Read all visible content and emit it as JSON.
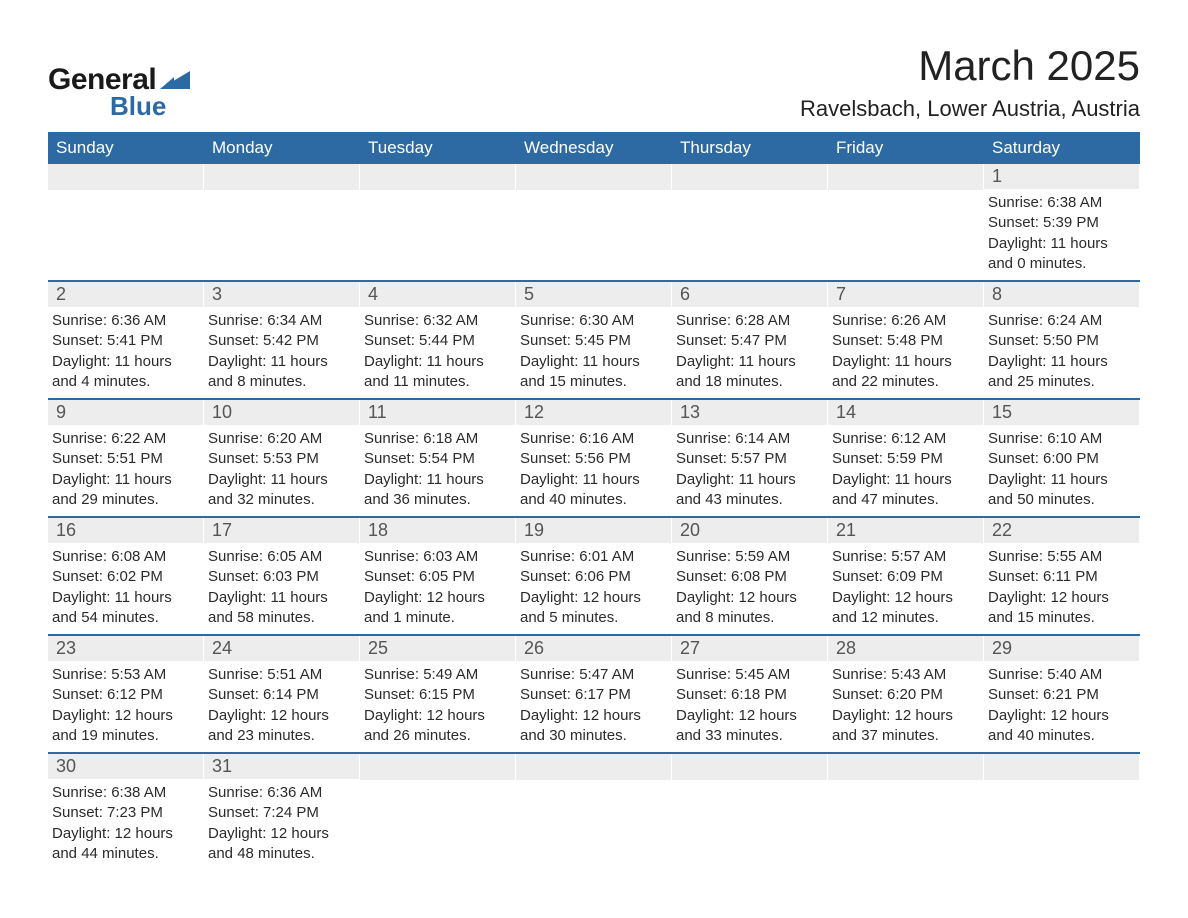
{
  "brand": {
    "part1": "General",
    "part2": "Blue",
    "mark_color": "#2d6aa3"
  },
  "title": "March 2025",
  "location": "Ravelsbach, Lower Austria, Austria",
  "colors": {
    "header_bg": "#2d6aa3",
    "header_text": "#ffffff",
    "daynum_bg": "#ededed",
    "text": "#333333",
    "row_border": "#2d6aa3"
  },
  "day_headers": [
    "Sunday",
    "Monday",
    "Tuesday",
    "Wednesday",
    "Thursday",
    "Friday",
    "Saturday"
  ],
  "weeks": [
    [
      null,
      null,
      null,
      null,
      null,
      null,
      {
        "n": "1",
        "sr": "6:38 AM",
        "ss": "5:39 PM",
        "dl": "11 hours and 0 minutes."
      }
    ],
    [
      {
        "n": "2",
        "sr": "6:36 AM",
        "ss": "5:41 PM",
        "dl": "11 hours and 4 minutes."
      },
      {
        "n": "3",
        "sr": "6:34 AM",
        "ss": "5:42 PM",
        "dl": "11 hours and 8 minutes."
      },
      {
        "n": "4",
        "sr": "6:32 AM",
        "ss": "5:44 PM",
        "dl": "11 hours and 11 minutes."
      },
      {
        "n": "5",
        "sr": "6:30 AM",
        "ss": "5:45 PM",
        "dl": "11 hours and 15 minutes."
      },
      {
        "n": "6",
        "sr": "6:28 AM",
        "ss": "5:47 PM",
        "dl": "11 hours and 18 minutes."
      },
      {
        "n": "7",
        "sr": "6:26 AM",
        "ss": "5:48 PM",
        "dl": "11 hours and 22 minutes."
      },
      {
        "n": "8",
        "sr": "6:24 AM",
        "ss": "5:50 PM",
        "dl": "11 hours and 25 minutes."
      }
    ],
    [
      {
        "n": "9",
        "sr": "6:22 AM",
        "ss": "5:51 PM",
        "dl": "11 hours and 29 minutes."
      },
      {
        "n": "10",
        "sr": "6:20 AM",
        "ss": "5:53 PM",
        "dl": "11 hours and 32 minutes."
      },
      {
        "n": "11",
        "sr": "6:18 AM",
        "ss": "5:54 PM",
        "dl": "11 hours and 36 minutes."
      },
      {
        "n": "12",
        "sr": "6:16 AM",
        "ss": "5:56 PM",
        "dl": "11 hours and 40 minutes."
      },
      {
        "n": "13",
        "sr": "6:14 AM",
        "ss": "5:57 PM",
        "dl": "11 hours and 43 minutes."
      },
      {
        "n": "14",
        "sr": "6:12 AM",
        "ss": "5:59 PM",
        "dl": "11 hours and 47 minutes."
      },
      {
        "n": "15",
        "sr": "6:10 AM",
        "ss": "6:00 PM",
        "dl": "11 hours and 50 minutes."
      }
    ],
    [
      {
        "n": "16",
        "sr": "6:08 AM",
        "ss": "6:02 PM",
        "dl": "11 hours and 54 minutes."
      },
      {
        "n": "17",
        "sr": "6:05 AM",
        "ss": "6:03 PM",
        "dl": "11 hours and 58 minutes."
      },
      {
        "n": "18",
        "sr": "6:03 AM",
        "ss": "6:05 PM",
        "dl": "12 hours and 1 minute."
      },
      {
        "n": "19",
        "sr": "6:01 AM",
        "ss": "6:06 PM",
        "dl": "12 hours and 5 minutes."
      },
      {
        "n": "20",
        "sr": "5:59 AM",
        "ss": "6:08 PM",
        "dl": "12 hours and 8 minutes."
      },
      {
        "n": "21",
        "sr": "5:57 AM",
        "ss": "6:09 PM",
        "dl": "12 hours and 12 minutes."
      },
      {
        "n": "22",
        "sr": "5:55 AM",
        "ss": "6:11 PM",
        "dl": "12 hours and 15 minutes."
      }
    ],
    [
      {
        "n": "23",
        "sr": "5:53 AM",
        "ss": "6:12 PM",
        "dl": "12 hours and 19 minutes."
      },
      {
        "n": "24",
        "sr": "5:51 AM",
        "ss": "6:14 PM",
        "dl": "12 hours and 23 minutes."
      },
      {
        "n": "25",
        "sr": "5:49 AM",
        "ss": "6:15 PM",
        "dl": "12 hours and 26 minutes."
      },
      {
        "n": "26",
        "sr": "5:47 AM",
        "ss": "6:17 PM",
        "dl": "12 hours and 30 minutes."
      },
      {
        "n": "27",
        "sr": "5:45 AM",
        "ss": "6:18 PM",
        "dl": "12 hours and 33 minutes."
      },
      {
        "n": "28",
        "sr": "5:43 AM",
        "ss": "6:20 PM",
        "dl": "12 hours and 37 minutes."
      },
      {
        "n": "29",
        "sr": "5:40 AM",
        "ss": "6:21 PM",
        "dl": "12 hours and 40 minutes."
      }
    ],
    [
      {
        "n": "30",
        "sr": "6:38 AM",
        "ss": "7:23 PM",
        "dl": "12 hours and 44 minutes."
      },
      {
        "n": "31",
        "sr": "6:36 AM",
        "ss": "7:24 PM",
        "dl": "12 hours and 48 minutes."
      },
      null,
      null,
      null,
      null,
      null
    ]
  ],
  "labels": {
    "sunrise": "Sunrise: ",
    "sunset": "Sunset: ",
    "daylight": "Daylight: "
  }
}
